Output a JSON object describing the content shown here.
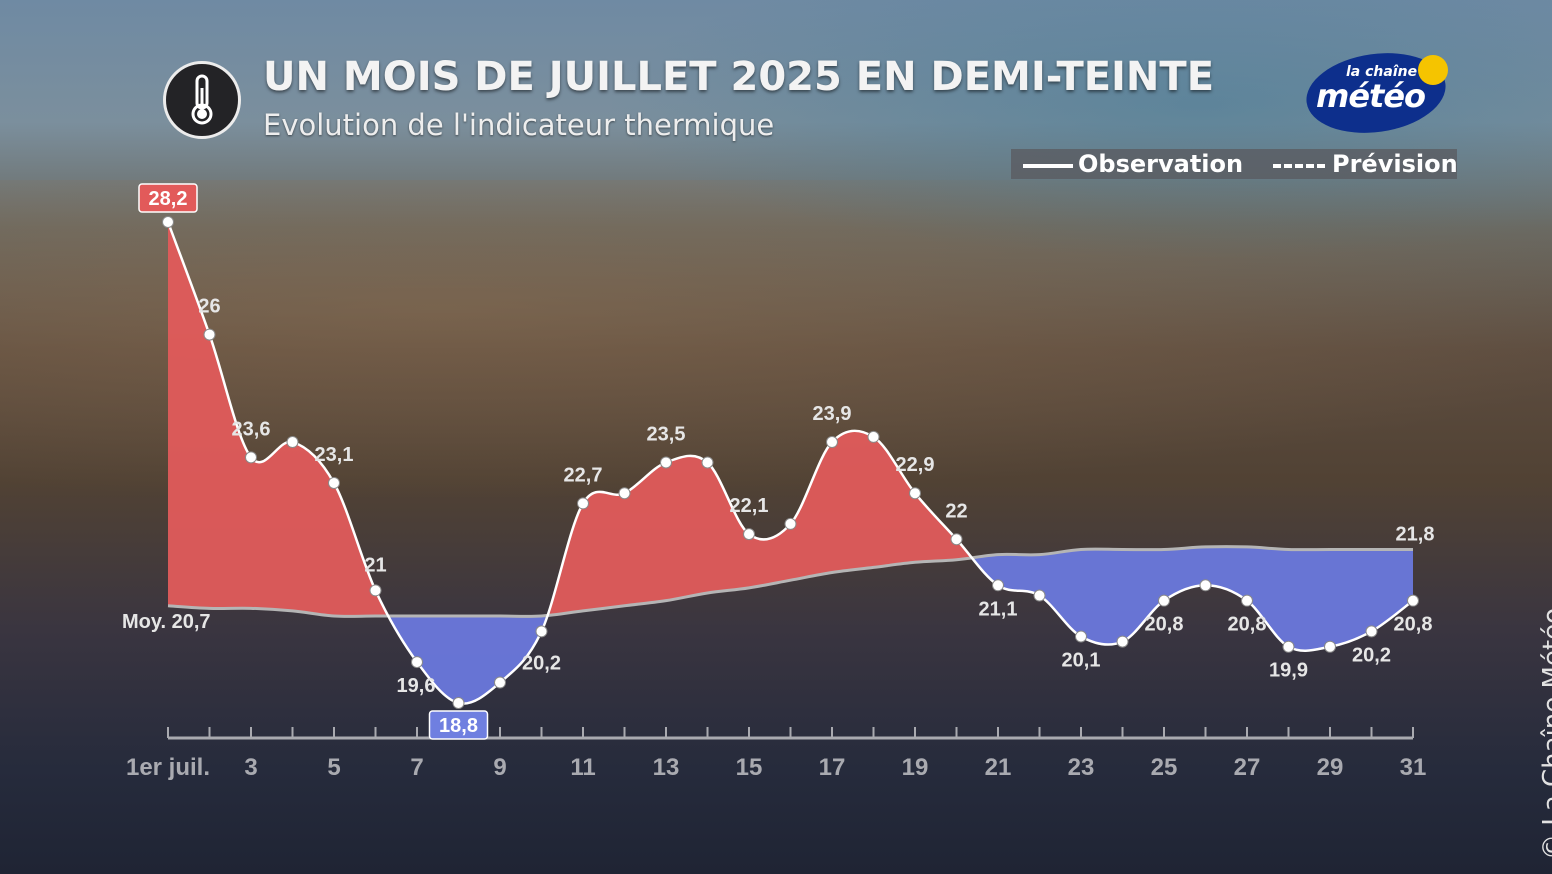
{
  "header": {
    "title": "UN MOIS DE JUILLET 2025 EN DEMI-TEINTE",
    "subtitle": "Evolution de l'indicateur thermique"
  },
  "logo": {
    "small_text": "la chaîne",
    "main_text": "météo"
  },
  "legend": {
    "observation": "Observation",
    "prevision": "Prévision"
  },
  "copyright": "© La Chaîne Météo",
  "icons": {
    "thermometer": "thermometer-icon"
  },
  "colors": {
    "above": "#e05b5b",
    "below": "#6a78dc",
    "max_badge": "#e25a5a",
    "min_badge": "#6f7fe0",
    "line": "#ffffff",
    "normal_line": "#b5b5b5"
  },
  "chart_data": {
    "type": "area",
    "title": "UN MOIS DE JUILLET 2025 EN DEMI-TEINTE",
    "subtitle": "Evolution de l'indicateur thermique",
    "x": [
      1,
      2,
      3,
      4,
      5,
      6,
      7,
      8,
      9,
      10,
      11,
      12,
      13,
      14,
      15,
      16,
      17,
      18,
      19,
      20,
      21,
      22,
      23,
      24,
      25,
      26,
      27,
      28,
      29,
      30,
      31
    ],
    "x_tick_values": [
      1,
      3,
      5,
      7,
      9,
      11,
      13,
      15,
      17,
      19,
      21,
      23,
      25,
      27,
      29,
      31
    ],
    "x_tick_labels": [
      "1er juil.",
      "3",
      "5",
      "7",
      "9",
      "11",
      "13",
      "15",
      "17",
      "19",
      "21",
      "23",
      "25",
      "27",
      "29",
      "31"
    ],
    "xlim": [
      1,
      31
    ],
    "series": [
      {
        "name": "Observation",
        "values": [
          28.2,
          26.0,
          23.6,
          23.9,
          23.1,
          21.0,
          19.6,
          18.8,
          19.2,
          20.2,
          22.7,
          22.9,
          23.5,
          23.5,
          22.1,
          22.3,
          23.9,
          24.0,
          22.9,
          22.0,
          21.1,
          20.9,
          20.1,
          20.0,
          20.8,
          21.1,
          20.8,
          19.9,
          19.9,
          20.2,
          20.8
        ]
      },
      {
        "name": "Moy.",
        "values": [
          20.7,
          20.65,
          20.65,
          20.6,
          20.5,
          20.5,
          20.5,
          20.5,
          20.5,
          20.5,
          20.6,
          20.7,
          20.8,
          20.95,
          21.05,
          21.2,
          21.35,
          21.45,
          21.55,
          21.6,
          21.7,
          21.7,
          21.8,
          21.8,
          21.8,
          21.85,
          21.85,
          21.8,
          21.8,
          21.8,
          21.8
        ]
      }
    ],
    "data_labels": [
      {
        "x": 1,
        "text": "28,2",
        "style": "max"
      },
      {
        "x": 2,
        "text": "26"
      },
      {
        "x": 3,
        "text": "23,6"
      },
      {
        "x": 5,
        "text": "23,1"
      },
      {
        "x": 6,
        "text": "21"
      },
      {
        "x": 7,
        "text": "19,6"
      },
      {
        "x": 8,
        "text": "18,8",
        "style": "min"
      },
      {
        "x": 10,
        "text": "20,2"
      },
      {
        "x": 11,
        "text": "22,7"
      },
      {
        "x": 13,
        "text": "23,5"
      },
      {
        "x": 15,
        "text": "22,1"
      },
      {
        "x": 17,
        "text": "23,9"
      },
      {
        "x": 19,
        "text": "22,9"
      },
      {
        "x": 20,
        "text": "22"
      },
      {
        "x": 21,
        "text": "21,1"
      },
      {
        "x": 23,
        "text": "20,1"
      },
      {
        "x": 25,
        "text": "20,8"
      },
      {
        "x": 27,
        "text": "20,8"
      },
      {
        "x": 28,
        "text": "19,9"
      },
      {
        "x": 30,
        "text": "20,2"
      },
      {
        "x": 31,
        "text": "20,8"
      },
      {
        "x": 31,
        "text": "21,8",
        "series": "Moy."
      }
    ],
    "normal_label": "Moy. 20,7",
    "ylim": [
      18.2,
      28.6
    ],
    "grid": false,
    "legend_position": "top-right"
  }
}
